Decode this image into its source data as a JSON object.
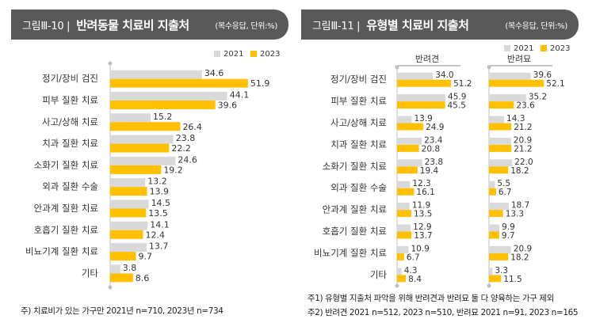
{
  "left": {
    "figure_no": "그림Ⅲ-10 |",
    "title": "반려동물 치료비 지출처",
    "unit": "(복수응답, 단위:%)",
    "note": "주) 치료비가 있는 가구만 2021년 n=710, 2023년 n=734"
  },
  "right": {
    "figure_no": "그림Ⅲ-11 |",
    "title": "유형별 치료비 지출처",
    "unit": "(복수응답, 단위:%)",
    "notes": [
      "주1) 유형별 지출처 파악을 위해 반려견과 반려묘 둘 다 양육하는 가구 제외",
      "주2) 반려견 2021 n=512, 2023 n=510, 반려묘 2021 n=91, 2023 n=165"
    ]
  },
  "colors": {
    "y2021": "#d9d9d9",
    "y2023": "#ffc000",
    "banner": "#595959"
  },
  "chart_data": [
    {
      "type": "bar",
      "orientation": "horizontal",
      "categories": [
        "정기/장비 검진",
        "피부 질환 치료",
        "사고/상해 치료",
        "치과 질환 치료",
        "소화기 질환 치료",
        "외과 질환 수술",
        "안과계 질환 치료",
        "호흡기 질환 치료",
        "비뇨기계 질환 치료",
        "기타"
      ],
      "series": [
        {
          "name": "2021",
          "values": [
            34.6,
            44.1,
            15.2,
            23.8,
            24.6,
            13.2,
            14.5,
            14.1,
            13.7,
            3.8
          ]
        },
        {
          "name": "2023",
          "values": [
            51.9,
            39.6,
            26.4,
            22.2,
            19.2,
            13.9,
            13.5,
            12.4,
            9.7,
            8.6
          ]
        }
      ],
      "legend": "top-right"
    },
    {
      "type": "bar",
      "orientation": "horizontal",
      "categories": [
        "정기/장비 검진",
        "피부 질환 치료",
        "사고/상해 치료",
        "치과 질환 치료",
        "소화기 질환 치료",
        "외과 질환 수술",
        "안과계 질환 치료",
        "호흡기 질환 치료",
        "비뇨기계 질환 치료",
        "기타"
      ],
      "legend": "top-right",
      "panels": [
        {
          "title": "반려견",
          "series": [
            {
              "name": "2021",
              "values": [
                34.0,
                45.9,
                13.9,
                23.4,
                23.8,
                12.3,
                11.9,
                12.9,
                10.9,
                4.3
              ]
            },
            {
              "name": "2023",
              "values": [
                51.2,
                45.5,
                24.9,
                20.8,
                19.4,
                16.1,
                13.5,
                13.7,
                6.7,
                8.4
              ]
            }
          ]
        },
        {
          "title": "반려묘",
          "series": [
            {
              "name": "2021",
              "values": [
                39.6,
                35.2,
                14.3,
                20.9,
                22.0,
                5.5,
                18.7,
                9.9,
                20.9,
                3.3
              ]
            },
            {
              "name": "2023",
              "values": [
                52.1,
                23.6,
                21.2,
                21.2,
                18.2,
                6.7,
                13.3,
                9.7,
                18.2,
                11.5
              ]
            }
          ]
        }
      ]
    }
  ]
}
